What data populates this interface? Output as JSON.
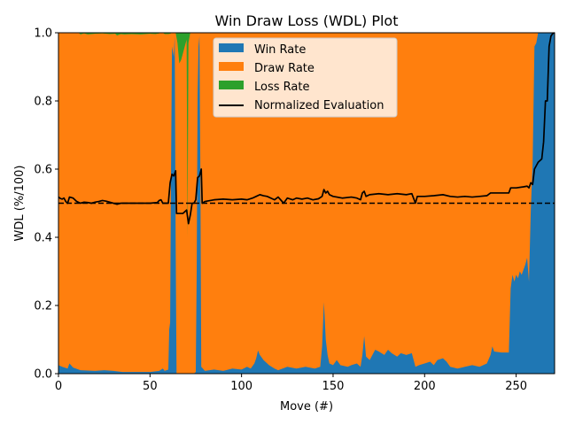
{
  "chart_data": {
    "type": "area",
    "title": "Win Draw Loss (WDL) Plot",
    "xlabel": "Move (#)",
    "ylabel": "WDL (%/100)",
    "xlim": [
      0,
      271
    ],
    "ylim": [
      0,
      1
    ],
    "x_ticks": [
      0,
      50,
      100,
      150,
      200,
      250
    ],
    "y_ticks": [
      "0.0",
      "0.2",
      "0.4",
      "0.6",
      "0.8",
      "1.0"
    ],
    "grid": false,
    "legend_position": "upper center",
    "reference_line": {
      "y": 0.5,
      "style": "dashed",
      "color": "#000000"
    },
    "series": [
      {
        "name": "Win Rate",
        "color": "#1f77b4",
        "points": [
          [
            0,
            0.025
          ],
          [
            2,
            0.02
          ],
          [
            5,
            0.015
          ],
          [
            6,
            0.03
          ],
          [
            8,
            0.018
          ],
          [
            12,
            0.01
          ],
          [
            20,
            0.008
          ],
          [
            25,
            0.01
          ],
          [
            30,
            0.008
          ],
          [
            35,
            0.005
          ],
          [
            40,
            0.005
          ],
          [
            50,
            0.005
          ],
          [
            55,
            0.008
          ],
          [
            57,
            0.015
          ],
          [
            58,
            0.008
          ],
          [
            60,
            0.012
          ],
          [
            60.5,
            0.13
          ],
          [
            61,
            0.15
          ],
          [
            61.5,
            0.6
          ],
          [
            62,
            0.96
          ],
          [
            63,
            0.93
          ],
          [
            63.5,
            0.99
          ],
          [
            64,
            0.4
          ],
          [
            64.5,
            0
          ],
          [
            65,
            0
          ],
          [
            74,
            0
          ],
          [
            75,
            0.005
          ],
          [
            75.5,
            0.3
          ],
          [
            76,
            0.82
          ],
          [
            76.5,
            0.96
          ],
          [
            77,
            0.99
          ],
          [
            77.5,
            0.6
          ],
          [
            78,
            0.02
          ],
          [
            80,
            0.008
          ],
          [
            85,
            0.012
          ],
          [
            90,
            0.008
          ],
          [
            95,
            0.015
          ],
          [
            100,
            0.012
          ],
          [
            103,
            0.02
          ],
          [
            105,
            0.015
          ],
          [
            107,
            0.03
          ],
          [
            108,
            0.045
          ],
          [
            109,
            0.068
          ],
          [
            110,
            0.055
          ],
          [
            112,
            0.04
          ],
          [
            115,
            0.025
          ],
          [
            118,
            0.015
          ],
          [
            120,
            0.01
          ],
          [
            125,
            0.02
          ],
          [
            130,
            0.015
          ],
          [
            135,
            0.02
          ],
          [
            140,
            0.015
          ],
          [
            143,
            0.02
          ],
          [
            144,
            0.08
          ],
          [
            145,
            0.21
          ],
          [
            146,
            0.1
          ],
          [
            147,
            0.055
          ],
          [
            148,
            0.03
          ],
          [
            150,
            0.025
          ],
          [
            152,
            0.04
          ],
          [
            154,
            0.025
          ],
          [
            158,
            0.02
          ],
          [
            160,
            0.025
          ],
          [
            163,
            0.03
          ],
          [
            165,
            0.02
          ],
          [
            166,
            0.055
          ],
          [
            167,
            0.11
          ],
          [
            168,
            0.05
          ],
          [
            170,
            0.04
          ],
          [
            172,
            0.06
          ],
          [
            173,
            0.07
          ],
          [
            175,
            0.065
          ],
          [
            178,
            0.055
          ],
          [
            180,
            0.07
          ],
          [
            182,
            0.06
          ],
          [
            185,
            0.05
          ],
          [
            187,
            0.06
          ],
          [
            190,
            0.055
          ],
          [
            193,
            0.06
          ],
          [
            195,
            0.02
          ],
          [
            197,
            0.025
          ],
          [
            200,
            0.03
          ],
          [
            203,
            0.035
          ],
          [
            205,
            0.025
          ],
          [
            207,
            0.04
          ],
          [
            210,
            0.045
          ],
          [
            212,
            0.035
          ],
          [
            214,
            0.02
          ],
          [
            218,
            0.015
          ],
          [
            222,
            0.02
          ],
          [
            226,
            0.025
          ],
          [
            230,
            0.02
          ],
          [
            234,
            0.03
          ],
          [
            236,
            0.055
          ],
          [
            237,
            0.08
          ],
          [
            238,
            0.065
          ],
          [
            242,
            0.062
          ],
          [
            246,
            0.062
          ],
          [
            247,
            0.25
          ],
          [
            248,
            0.29
          ],
          [
            249,
            0.27
          ],
          [
            250,
            0.29
          ],
          [
            251,
            0.28
          ],
          [
            252,
            0.3
          ],
          [
            253,
            0.29
          ],
          [
            255,
            0.32
          ],
          [
            256,
            0.34
          ],
          [
            257,
            0.27
          ],
          [
            258,
            0.48
          ],
          [
            259,
            0.62
          ],
          [
            260,
            0.96
          ],
          [
            261,
            0.97
          ],
          [
            262,
            1.0
          ],
          [
            271,
            1.0
          ]
        ]
      },
      {
        "name": "Draw Rate",
        "color": "#ff7f0e",
        "points": []
      },
      {
        "name": "Loss Rate",
        "color": "#2ca02c",
        "points": [
          [
            0,
            0
          ],
          [
            11,
            0
          ],
          [
            12,
            0.005
          ],
          [
            14,
            0.002
          ],
          [
            16,
            0.005
          ],
          [
            20,
            0.003
          ],
          [
            24,
            0.002
          ],
          [
            28,
            0.004
          ],
          [
            31,
            0.003
          ],
          [
            32,
            0.008
          ],
          [
            34,
            0.004
          ],
          [
            36,
            0.005
          ],
          [
            40,
            0.004
          ],
          [
            45,
            0.005
          ],
          [
            50,
            0.003
          ],
          [
            53,
            0.004
          ],
          [
            55,
            0.002
          ],
          [
            56,
            0
          ],
          [
            57,
            0
          ],
          [
            58,
            0.004
          ],
          [
            60,
            0.004
          ],
          [
            61,
            0.003
          ],
          [
            62,
            0
          ],
          [
            64,
            0
          ],
          [
            65,
            0.03
          ],
          [
            66,
            0.09
          ],
          [
            67,
            0.08
          ],
          [
            68,
            0.06
          ],
          [
            69,
            0.04
          ],
          [
            70,
            0.02
          ],
          [
            70.5,
            0.6
          ],
          [
            71,
            0.03
          ],
          [
            72,
            0.0
          ],
          [
            73,
            0
          ],
          [
            74,
            0
          ],
          [
            271,
            0
          ]
        ]
      },
      {
        "name": "Normalized Evaluation",
        "color": "#000000",
        "points": [
          [
            0,
            0.518
          ],
          [
            1,
            0.514
          ],
          [
            2,
            0.512
          ],
          [
            3,
            0.515
          ],
          [
            4,
            0.505
          ],
          [
            5,
            0.5
          ],
          [
            6,
            0.518
          ],
          [
            8,
            0.515
          ],
          [
            10,
            0.505
          ],
          [
            12,
            0.5
          ],
          [
            14,
            0.503
          ],
          [
            16,
            0.502
          ],
          [
            18,
            0.5
          ],
          [
            20,
            0.503
          ],
          [
            22,
            0.505
          ],
          [
            24,
            0.508
          ],
          [
            26,
            0.506
          ],
          [
            28,
            0.503
          ],
          [
            30,
            0.5
          ],
          [
            32,
            0.497
          ],
          [
            34,
            0.5
          ],
          [
            36,
            0.5
          ],
          [
            40,
            0.5
          ],
          [
            45,
            0.5
          ],
          [
            50,
            0.5
          ],
          [
            54,
            0.502
          ],
          [
            55,
            0.508
          ],
          [
            56,
            0.51
          ],
          [
            57,
            0.5
          ],
          [
            58,
            0.5
          ],
          [
            60,
            0.5
          ],
          [
            61,
            0.56
          ],
          [
            62,
            0.585
          ],
          [
            63,
            0.58
          ],
          [
            64,
            0.595
          ],
          [
            64.5,
            0.47
          ],
          [
            66,
            0.47
          ],
          [
            68,
            0.47
          ],
          [
            69,
            0.475
          ],
          [
            70,
            0.48
          ],
          [
            71,
            0.44
          ],
          [
            72,
            0.465
          ],
          [
            73,
            0.5
          ],
          [
            74,
            0.5
          ],
          [
            75,
            0.51
          ],
          [
            76,
            0.575
          ],
          [
            77,
            0.58
          ],
          [
            78,
            0.6
          ],
          [
            78.5,
            0.5
          ],
          [
            80,
            0.505
          ],
          [
            85,
            0.51
          ],
          [
            90,
            0.512
          ],
          [
            95,
            0.51
          ],
          [
            100,
            0.512
          ],
          [
            103,
            0.51
          ],
          [
            106,
            0.515
          ],
          [
            108,
            0.52
          ],
          [
            110,
            0.525
          ],
          [
            112,
            0.522
          ],
          [
            114,
            0.52
          ],
          [
            116,
            0.515
          ],
          [
            118,
            0.51
          ],
          [
            120,
            0.518
          ],
          [
            123,
            0.5
          ],
          [
            125,
            0.515
          ],
          [
            128,
            0.51
          ],
          [
            130,
            0.515
          ],
          [
            133,
            0.512
          ],
          [
            136,
            0.515
          ],
          [
            139,
            0.51
          ],
          [
            142,
            0.513
          ],
          [
            144,
            0.52
          ],
          [
            145,
            0.54
          ],
          [
            146,
            0.53
          ],
          [
            147,
            0.535
          ],
          [
            148,
            0.525
          ],
          [
            150,
            0.52
          ],
          [
            155,
            0.515
          ],
          [
            160,
            0.518
          ],
          [
            163,
            0.515
          ],
          [
            165,
            0.51
          ],
          [
            166,
            0.53
          ],
          [
            167,
            0.535
          ],
          [
            168,
            0.52
          ],
          [
            170,
            0.525
          ],
          [
            175,
            0.528
          ],
          [
            180,
            0.525
          ],
          [
            185,
            0.528
          ],
          [
            190,
            0.525
          ],
          [
            193,
            0.528
          ],
          [
            195,
            0.5
          ],
          [
            196,
            0.52
          ],
          [
            200,
            0.52
          ],
          [
            205,
            0.522
          ],
          [
            210,
            0.525
          ],
          [
            214,
            0.52
          ],
          [
            218,
            0.518
          ],
          [
            222,
            0.52
          ],
          [
            226,
            0.518
          ],
          [
            230,
            0.52
          ],
          [
            234,
            0.522
          ],
          [
            236,
            0.53
          ],
          [
            238,
            0.53
          ],
          [
            242,
            0.53
          ],
          [
            246,
            0.53
          ],
          [
            247,
            0.545
          ],
          [
            250,
            0.545
          ],
          [
            254,
            0.548
          ],
          [
            256,
            0.55
          ],
          [
            257,
            0.545
          ],
          [
            258,
            0.56
          ],
          [
            259,
            0.555
          ],
          [
            260,
            0.6
          ],
          [
            261,
            0.61
          ],
          [
            262,
            0.62
          ],
          [
            263,
            0.625
          ],
          [
            264,
            0.63
          ],
          [
            265,
            0.68
          ],
          [
            266,
            0.8
          ],
          [
            267,
            0.8
          ],
          [
            268,
            0.96
          ],
          [
            269,
            0.99
          ],
          [
            270,
            0.998
          ],
          [
            271,
            1.0
          ]
        ]
      }
    ]
  }
}
